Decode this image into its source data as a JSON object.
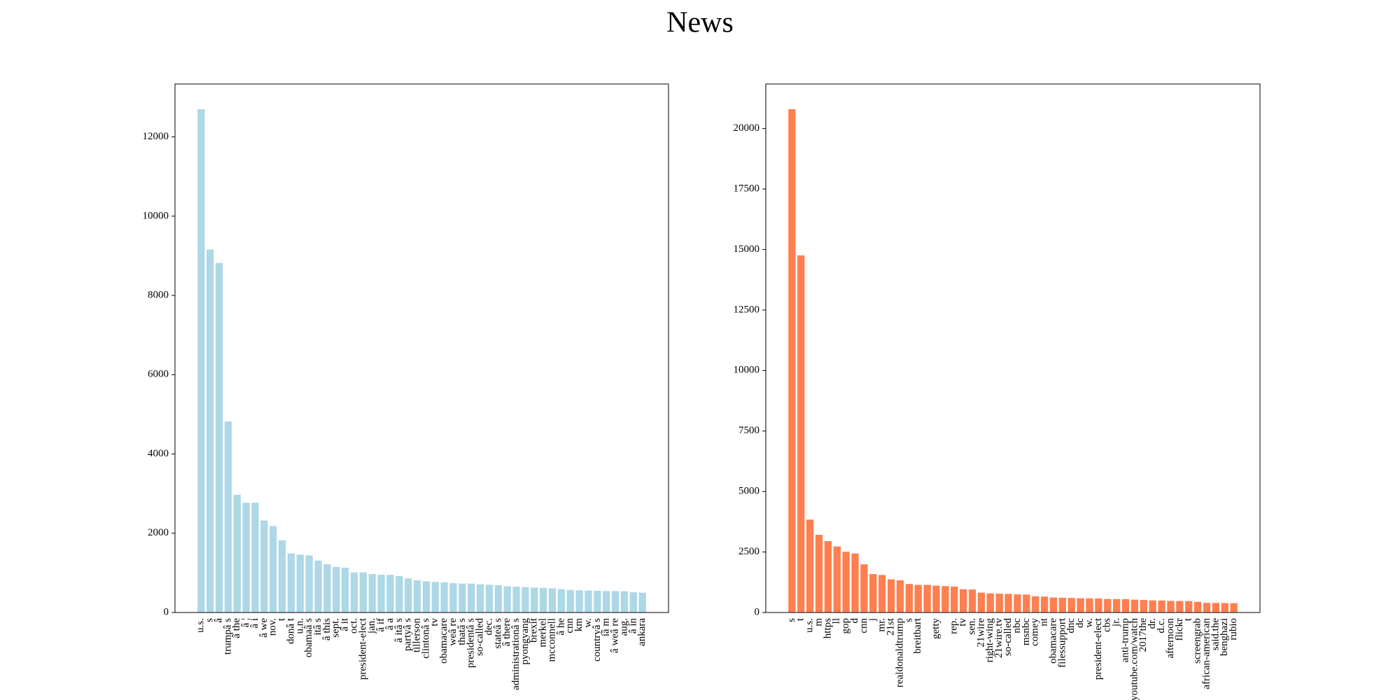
{
  "title": "News",
  "chart_data": [
    {
      "type": "bar",
      "color": "#add8e6",
      "categories": [
        "u.s.",
        "s",
        "â",
        "trumpâ s",
        "â the",
        "â ¦",
        "â i",
        "â we",
        "nov.",
        "t",
        "donâ t",
        "u.n.",
        "obamaâ s",
        "itâ s",
        "â this",
        "sept.",
        "â it",
        "oct.",
        "president-elect",
        "jan.",
        "â if",
        "â a",
        "â itâ s",
        "partyâ s",
        "tillerson",
        "clintonâ s",
        "tv",
        "obamacare",
        "weâ re",
        "thatâ s",
        "presidentâ s",
        "so-called",
        "dec.",
        "stateâ s",
        "â there",
        "administrationâ s",
        "pyongyang",
        "brexit",
        "merkel",
        "mcconnell",
        "â he",
        "cnn",
        "km",
        "w.",
        "countryâ s",
        "iâ m",
        "â weâ re",
        "aug.",
        "â in",
        "ankara"
      ],
      "values": [
        12700,
        9160,
        8820,
        4820,
        2970,
        2770,
        2770,
        2320,
        2180,
        1820,
        1490,
        1460,
        1440,
        1310,
        1220,
        1150,
        1130,
        1010,
        1010,
        970,
        950,
        950,
        920,
        860,
        810,
        790,
        770,
        760,
        740,
        730,
        730,
        710,
        700,
        690,
        660,
        650,
        640,
        630,
        620,
        610,
        590,
        570,
        560,
        555,
        550,
        540,
        540,
        535,
        510,
        500
      ],
      "ylim": [
        0,
        13335
      ],
      "yticks": [
        0,
        2000,
        4000,
        6000,
        8000,
        10000,
        12000
      ]
    },
    {
      "type": "bar",
      "color": "#ff7f50",
      "categories": [
        "s",
        "t",
        "u.s.",
        "m",
        "https",
        "ll",
        "gop",
        "d",
        "cnn",
        "j",
        "mr.",
        "21st",
        "realdonaldtrump",
        "s",
        "breitbart",
        null,
        "getty",
        null,
        "rep.",
        "tv",
        "sen.",
        "21wire",
        "right-wing",
        "21wire.tv",
        "so-called",
        "nbc",
        "msnbc",
        "comey",
        "nt",
        "obamacare",
        "filessupport",
        "dnc",
        "dc",
        "w.",
        "president-elect",
        "cbs",
        "jr.",
        "anti-trump",
        "youtube.com/watch",
        "2017the",
        "dr.",
        "d.c.",
        "afternoon",
        "flickr",
        "t",
        "screengrab",
        "african-american",
        "said.the",
        "benghazi",
        "rubio"
      ],
      "values": [
        20800,
        14760,
        3840,
        3210,
        2950,
        2730,
        2510,
        2440,
        1990,
        1590,
        1550,
        1370,
        1330,
        1180,
        1140,
        1140,
        1110,
        1090,
        1070,
        960,
        950,
        820,
        790,
        780,
        770,
        750,
        740,
        670,
        660,
        620,
        610,
        600,
        590,
        585,
        580,
        560,
        555,
        550,
        530,
        520,
        500,
        495,
        480,
        475,
        470,
        440,
        400,
        395,
        390,
        385
      ],
      "ylim": [
        0,
        21840
      ],
      "yticks": [
        0,
        2500,
        5000,
        7500,
        10000,
        12500,
        15000,
        17500,
        20000
      ]
    }
  ]
}
